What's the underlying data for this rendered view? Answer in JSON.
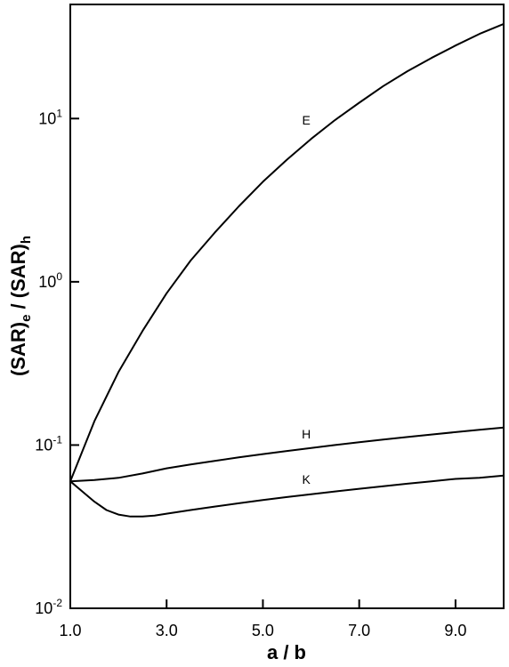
{
  "chart_data": {
    "type": "line",
    "title": "",
    "xlabel": "a / b",
    "ylabel": "(SAR)e / (SAR)h",
    "ylabel_parts": {
      "open": "(SAR)",
      "sub1": "e",
      "slash": " / (SAR)",
      "sub2": "h"
    },
    "xlim": [
      1.0,
      10.0
    ],
    "ylim": [
      0.01,
      50
    ],
    "yscale": "log",
    "grid": false,
    "legend": "none",
    "x_ticks": [
      1.0,
      3.0,
      5.0,
      7.0,
      9.0
    ],
    "x_tick_labels": [
      "1.0",
      "3.0",
      "5.0",
      "7.0",
      "9.0"
    ],
    "y_ticks": [
      0.01,
      0.1,
      1,
      10
    ],
    "y_tick_labels": [
      {
        "base": "10",
        "exp": "-2"
      },
      {
        "base": "10",
        "exp": "-1"
      },
      {
        "base": "10",
        "exp": "0"
      },
      {
        "base": "10",
        "exp": "1"
      }
    ],
    "series": [
      {
        "name": "E",
        "x": [
          1.0,
          1.5,
          2.0,
          2.5,
          3.0,
          3.5,
          4.0,
          4.5,
          5.0,
          5.5,
          6.0,
          6.5,
          7.0,
          7.5,
          8.0,
          8.5,
          9.0,
          9.5,
          10.0
        ],
        "y": [
          0.06,
          0.14,
          0.28,
          0.5,
          0.85,
          1.35,
          2.0,
          2.9,
          4.1,
          5.6,
          7.5,
          9.8,
          12.5,
          15.8,
          19.5,
          23.5,
          28.0,
          33.0,
          38.0
        ],
        "label_x": 5.9,
        "label_y": 9.2
      },
      {
        "name": "H",
        "x": [
          1.0,
          1.5,
          2.0,
          2.5,
          3.0,
          3.5,
          4.0,
          4.5,
          5.0,
          5.5,
          6.0,
          6.5,
          7.0,
          7.5,
          8.0,
          8.5,
          9.0,
          9.5,
          10.0
        ],
        "y": [
          0.06,
          0.061,
          0.063,
          0.067,
          0.072,
          0.076,
          0.08,
          0.084,
          0.088,
          0.092,
          0.096,
          0.1,
          0.104,
          0.108,
          0.112,
          0.116,
          0.12,
          0.124,
          0.128
        ],
        "label_x": 5.9,
        "label_y": 0.11
      },
      {
        "name": "K",
        "x": [
          1.0,
          1.25,
          1.5,
          1.75,
          2.0,
          2.25,
          2.5,
          2.75,
          3.0,
          3.5,
          4.0,
          4.5,
          5.0,
          5.5,
          6.0,
          6.5,
          7.0,
          7.5,
          8.0,
          8.5,
          9.0,
          9.5,
          10.0
        ],
        "y": [
          0.06,
          0.052,
          0.045,
          0.04,
          0.0375,
          0.0365,
          0.0365,
          0.037,
          0.038,
          0.04,
          0.042,
          0.044,
          0.046,
          0.048,
          0.05,
          0.052,
          0.054,
          0.056,
          0.058,
          0.06,
          0.062,
          0.063,
          0.065
        ],
        "label_x": 5.9,
        "label_y": 0.058
      }
    ]
  }
}
